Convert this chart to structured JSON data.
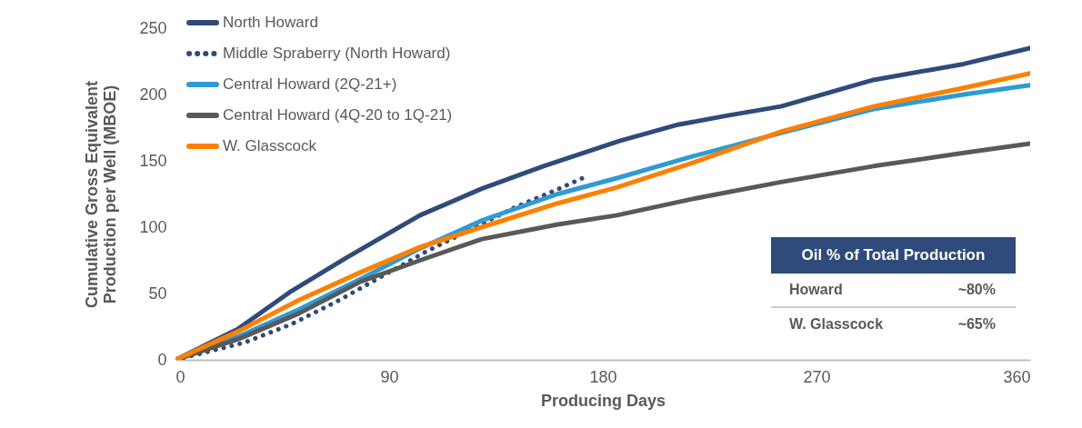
{
  "chart_data": {
    "type": "line",
    "xlabel": "Producing Days",
    "ylabel": "Cumulative Gross Equivalent Production per Well (MBOE)",
    "xlim": [
      0,
      360
    ],
    "xticks": [
      0,
      90,
      180,
      270,
      360
    ],
    "ylim": [
      0,
      250
    ],
    "yticks": [
      0,
      50,
      100,
      150,
      200,
      250
    ],
    "legend": "top left",
    "grid": false,
    "series": [
      {
        "name": "North Howard",
        "color": "#2f4b7c",
        "line_style": "solid",
        "x": [
          0,
          26,
          49,
          72,
          103,
          129,
          155,
          187,
          211,
          232,
          255,
          294,
          332,
          360
        ],
        "values": [
          0,
          23,
          52,
          77,
          109,
          129,
          146,
          165,
          177,
          184,
          191,
          211,
          223,
          235
        ]
      },
      {
        "name": "Middle Spraberry (North Howard)",
        "color": "#2f4b7c",
        "line_style": "dotted",
        "x": [
          0,
          29,
          49,
          68,
          83,
          105,
          124,
          143,
          159,
          174
        ],
        "values": [
          0,
          13,
          27,
          44,
          59,
          81,
          98,
          115,
          127,
          139
        ]
      },
      {
        "name": "Central Howard (2Q-21+)",
        "color": "#2e9bd6",
        "line_style": "solid",
        "x": [
          0,
          27,
          52,
          78,
          103,
          129,
          161,
          186,
          217,
          255,
          294,
          332,
          360
        ],
        "values": [
          0,
          18,
          38,
          61,
          84,
          105,
          125,
          137,
          153,
          171,
          189,
          200,
          207
        ]
      },
      {
        "name": "Central Howard (4Q-20 to 1Q-21)",
        "color": "#595959",
        "line_style": "solid",
        "x": [
          0,
          27,
          52,
          78,
          103,
          129,
          161,
          186,
          217,
          255,
          294,
          332,
          360
        ],
        "values": [
          0,
          16,
          35,
          59,
          75,
          91,
          102,
          109,
          121,
          134,
          146,
          156,
          163
        ]
      },
      {
        "name": "W. Glasscock",
        "color": "#ff8000",
        "line_style": "solid",
        "x": [
          0,
          27,
          52,
          78,
          103,
          129,
          161,
          186,
          217,
          255,
          294,
          332,
          360
        ],
        "values": [
          0,
          22,
          45,
          66,
          85,
          100,
          118,
          130,
          148,
          172,
          191,
          205,
          216
        ]
      }
    ],
    "annotations": [
      "Oil % of Total Production",
      "Howard",
      "~80%",
      "W. Glasscock",
      "~65%"
    ]
  }
}
